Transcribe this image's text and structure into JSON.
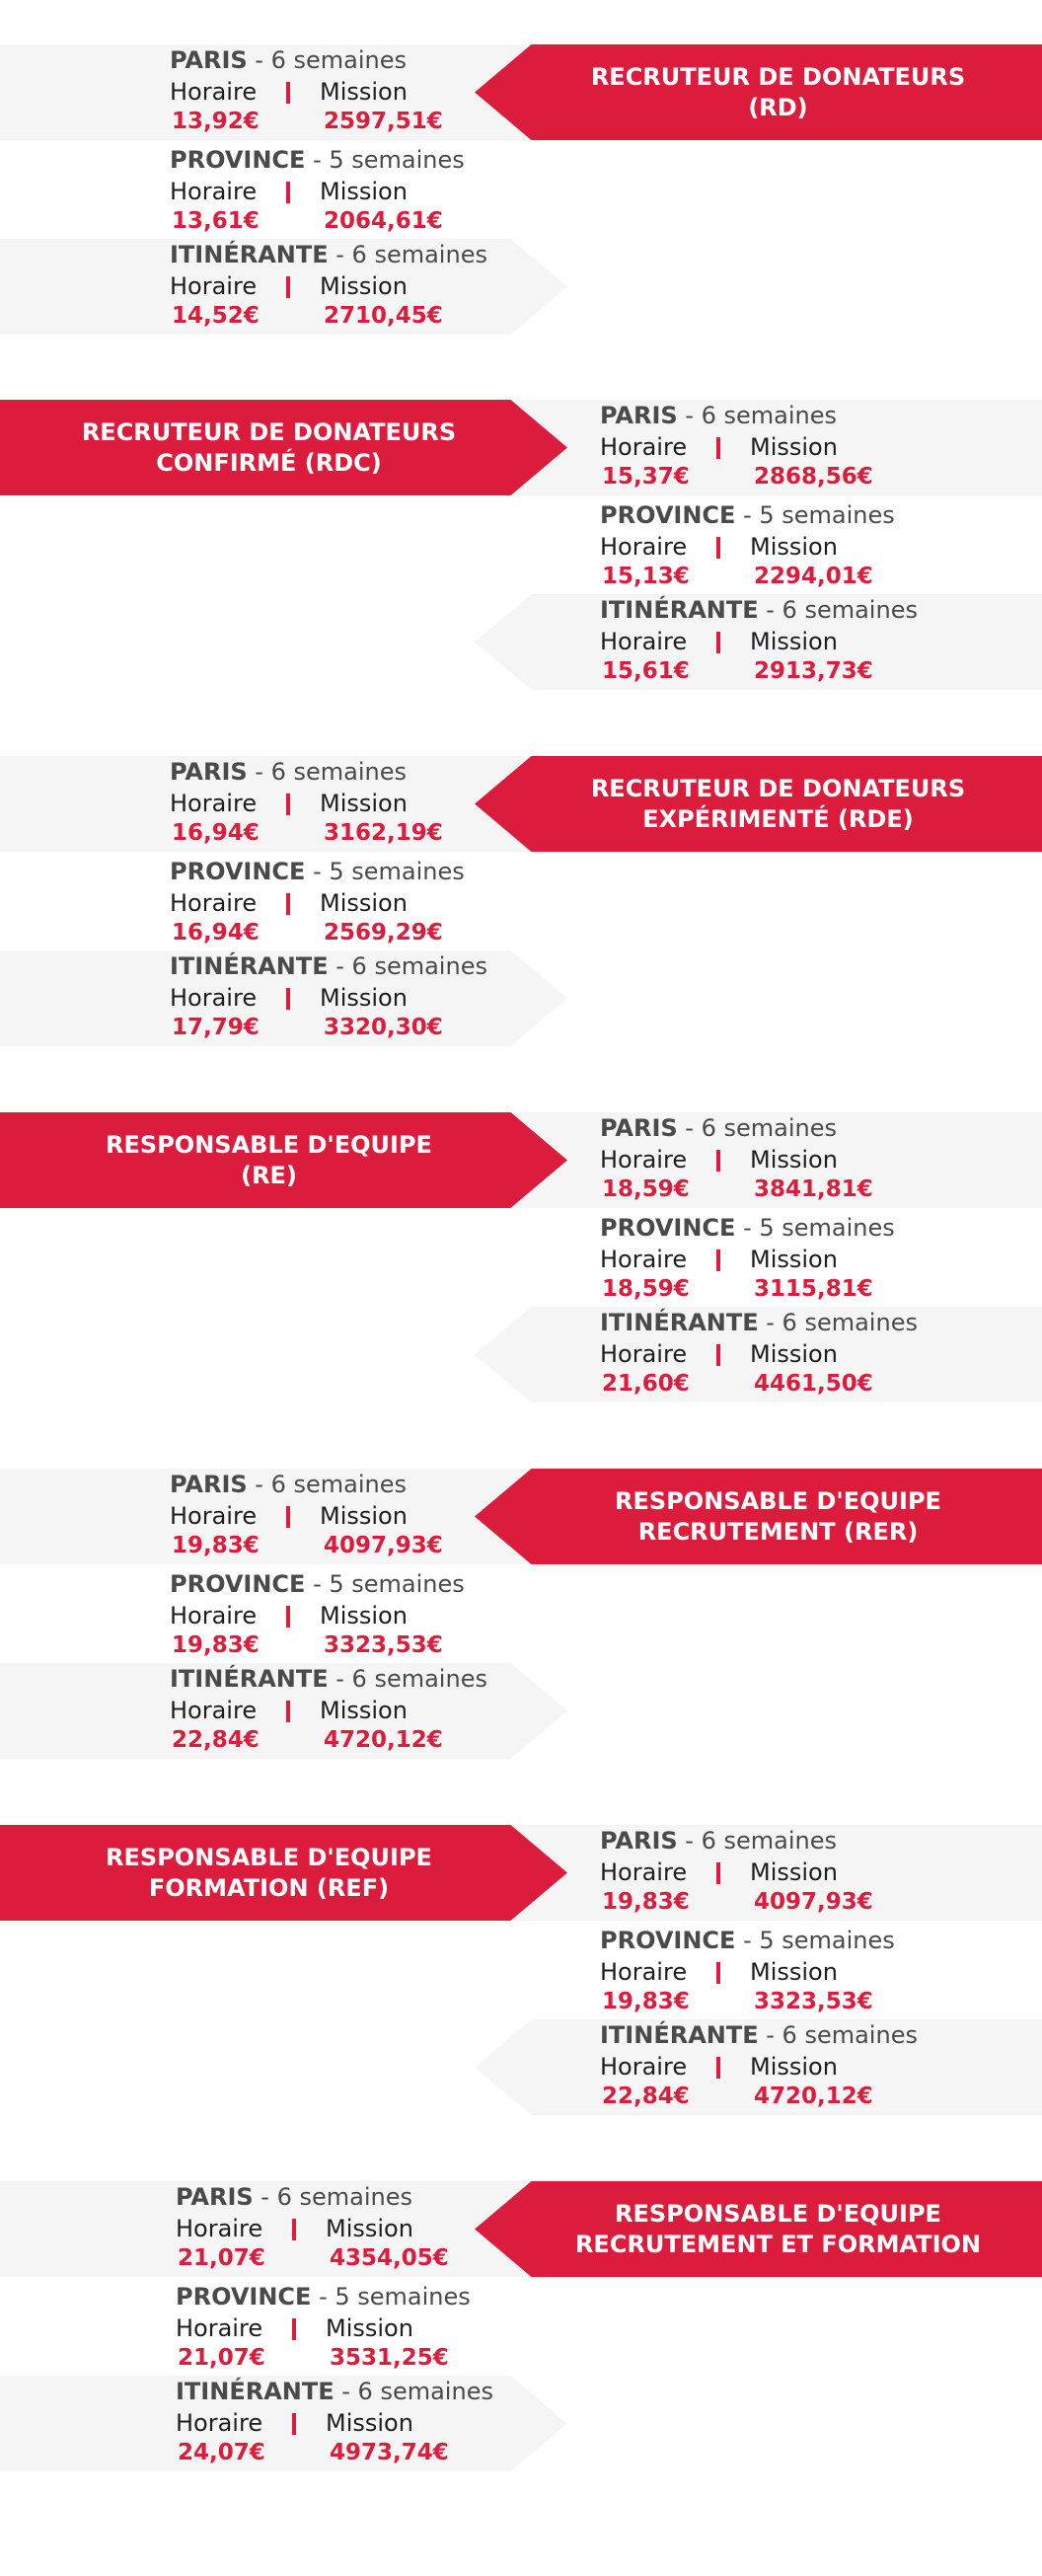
{
  "common": {
    "label_horaire": "Horaire",
    "label_mission": "Mission"
  },
  "sections": [
    {
      "banner_lines": [
        "RECRUTEUR DE DONATEURS",
        "(RD)"
      ],
      "locations": [
        {
          "name": "PARIS",
          "duration": "- 6 semaines",
          "hourly": "13,92€",
          "mission": "2597,51€"
        },
        {
          "name": "PROVINCE",
          "duration": "- 5 semaines",
          "hourly": "13,61€",
          "mission": "2064,61€"
        },
        {
          "name": "ITINÉRANTE",
          "duration": "- 6 semaines",
          "hourly": "14,52€",
          "mission": "2710,45€"
        }
      ]
    },
    {
      "banner_lines": [
        "RECRUTEUR DE DONATEURS",
        "CONFIRMÉ (RDC)"
      ],
      "locations": [
        {
          "name": "PARIS",
          "duration": "- 6 semaines",
          "hourly": "15,37€",
          "mission": "2868,56€"
        },
        {
          "name": "PROVINCE",
          "duration": "- 5 semaines",
          "hourly": "15,13€",
          "mission": "2294,01€"
        },
        {
          "name": "ITINÉRANTE",
          "duration": "- 6 semaines",
          "hourly": "15,61€",
          "mission": "2913,73€"
        }
      ]
    },
    {
      "banner_lines": [
        "RECRUTEUR DE DONATEURS",
        "EXPÉRIMENTÉ (RDE)"
      ],
      "locations": [
        {
          "name": "PARIS",
          "duration": "- 6 semaines",
          "hourly": "16,94€",
          "mission": "3162,19€"
        },
        {
          "name": "PROVINCE",
          "duration": "- 5 semaines",
          "hourly": "16,94€",
          "mission": "2569,29€"
        },
        {
          "name": "ITINÉRANTE",
          "duration": "- 6 semaines",
          "hourly": "17,79€",
          "mission": "3320,30€"
        }
      ]
    },
    {
      "banner_lines": [
        "RESPONSABLE D'EQUIPE",
        "(RE)"
      ],
      "locations": [
        {
          "name": "PARIS",
          "duration": "- 6 semaines",
          "hourly": "18,59€",
          "mission": "3841,81€"
        },
        {
          "name": "PROVINCE",
          "duration": "- 5 semaines",
          "hourly": "18,59€",
          "mission": "3115,81€"
        },
        {
          "name": "ITINÉRANTE",
          "duration": "- 6 semaines",
          "hourly": "21,60€",
          "mission": "4461,50€"
        }
      ]
    },
    {
      "banner_lines": [
        "RESPONSABLE D'EQUIPE",
        "RECRUTEMENT (RER)"
      ],
      "locations": [
        {
          "name": "PARIS",
          "duration": "- 6 semaines",
          "hourly": "19,83€",
          "mission": "4097,93€"
        },
        {
          "name": "PROVINCE",
          "duration": "- 5 semaines",
          "hourly": "19,83€",
          "mission": "3323,53€"
        },
        {
          "name": "ITINÉRANTE",
          "duration": "- 6 semaines",
          "hourly": "22,84€",
          "mission": "4720,12€"
        }
      ]
    },
    {
      "banner_lines": [
        "RESPONSABLE D'EQUIPE",
        "FORMATION (REF)"
      ],
      "locations": [
        {
          "name": "PARIS",
          "duration": "- 6 semaines",
          "hourly": "19,83€",
          "mission": "4097,93€"
        },
        {
          "name": "PROVINCE",
          "duration": "- 5 semaines",
          "hourly": "19,83€",
          "mission": "3323,53€"
        },
        {
          "name": "ITINÉRANTE",
          "duration": "- 6 semaines",
          "hourly": "22,84€",
          "mission": "4720,12€"
        }
      ]
    },
    {
      "banner_lines": [
        "RESPONSABLE D'EQUIPE",
        "RECRUTEMENT ET FORMATION"
      ],
      "locations": [
        {
          "name": "PARIS",
          "duration": "- 6 semaines",
          "hourly": "21,07€",
          "mission": "4354,05€"
        },
        {
          "name": "PROVINCE",
          "duration": "- 5 semaines",
          "hourly": "21,07€",
          "mission": "3531,25€"
        },
        {
          "name": "ITINÉRANTE",
          "duration": "- 6 semaines",
          "hourly": "24,07€",
          "mission": "4973,74€"
        }
      ]
    }
  ]
}
